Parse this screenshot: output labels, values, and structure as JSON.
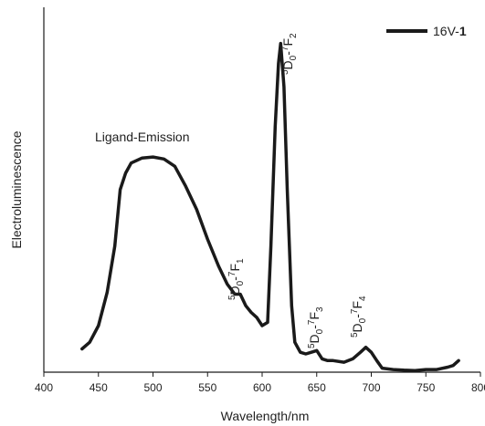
{
  "chart_data": {
    "type": "line",
    "xlabel": "Wavelength/nm",
    "ylabel": "Electroluminescence",
    "xlim": [
      400,
      800
    ],
    "xticks": [
      400,
      450,
      500,
      550,
      600,
      650,
      700,
      750,
      800
    ],
    "ylim": [
      0,
      1
    ],
    "legend": {
      "position": "top-right",
      "prefix": "16V-",
      "bold": "1"
    },
    "series": [
      {
        "name": "16V-1",
        "color": "#1a1a1a",
        "points": [
          [
            435,
            0.07
          ],
          [
            442,
            0.09
          ],
          [
            450,
            0.14
          ],
          [
            458,
            0.24
          ],
          [
            465,
            0.38
          ],
          [
            470,
            0.55
          ],
          [
            475,
            0.6
          ],
          [
            480,
            0.63
          ],
          [
            490,
            0.645
          ],
          [
            500,
            0.648
          ],
          [
            510,
            0.642
          ],
          [
            520,
            0.62
          ],
          [
            530,
            0.56
          ],
          [
            540,
            0.49
          ],
          [
            550,
            0.4
          ],
          [
            560,
            0.32
          ],
          [
            568,
            0.265
          ],
          [
            575,
            0.235
          ],
          [
            580,
            0.235
          ],
          [
            585,
            0.2
          ],
          [
            590,
            0.18
          ],
          [
            595,
            0.165
          ],
          [
            600,
            0.14
          ],
          [
            605,
            0.15
          ],
          [
            608,
            0.38
          ],
          [
            612,
            0.74
          ],
          [
            615,
            0.93
          ],
          [
            617,
            0.99
          ],
          [
            620,
            0.86
          ],
          [
            623,
            0.55
          ],
          [
            627,
            0.2
          ],
          [
            630,
            0.09
          ],
          [
            635,
            0.06
          ],
          [
            640,
            0.055
          ],
          [
            645,
            0.06
          ],
          [
            650,
            0.065
          ],
          [
            655,
            0.04
          ],
          [
            660,
            0.035
          ],
          [
            665,
            0.035
          ],
          [
            675,
            0.03
          ],
          [
            683,
            0.04
          ],
          [
            690,
            0.06
          ],
          [
            695,
            0.075
          ],
          [
            700,
            0.06
          ],
          [
            705,
            0.035
          ],
          [
            710,
            0.012
          ],
          [
            720,
            0.008
          ],
          [
            730,
            0.006
          ],
          [
            740,
            0.005
          ],
          [
            750,
            0.008
          ],
          [
            760,
            0.008
          ],
          [
            770,
            0.015
          ],
          [
            775,
            0.02
          ],
          [
            780,
            0.035
          ]
        ]
      }
    ],
    "annotations": [
      {
        "id": "ligand",
        "text": "Ligand-Emission"
      },
      {
        "id": "f1",
        "sup1": "5",
        "main1": "D",
        "sub": "0",
        "dash": "-",
        "sup2": "7",
        "main2": "F",
        "sub2": "1"
      },
      {
        "id": "f2",
        "sup1": "5",
        "main1": "D",
        "sub": "0",
        "dash": "-",
        "sup2": "7",
        "main2": "F",
        "sub2": "2"
      },
      {
        "id": "f3",
        "sup1": "5",
        "main1": "D",
        "sub": "0",
        "dash": "-",
        "sup2": "7",
        "main2": "F",
        "sub2": "3"
      },
      {
        "id": "f4",
        "sup1": "5",
        "main1": "D",
        "sub": "0",
        "dash": "-",
        "sup2": "7",
        "main2": "F",
        "sub2": "4"
      }
    ]
  }
}
